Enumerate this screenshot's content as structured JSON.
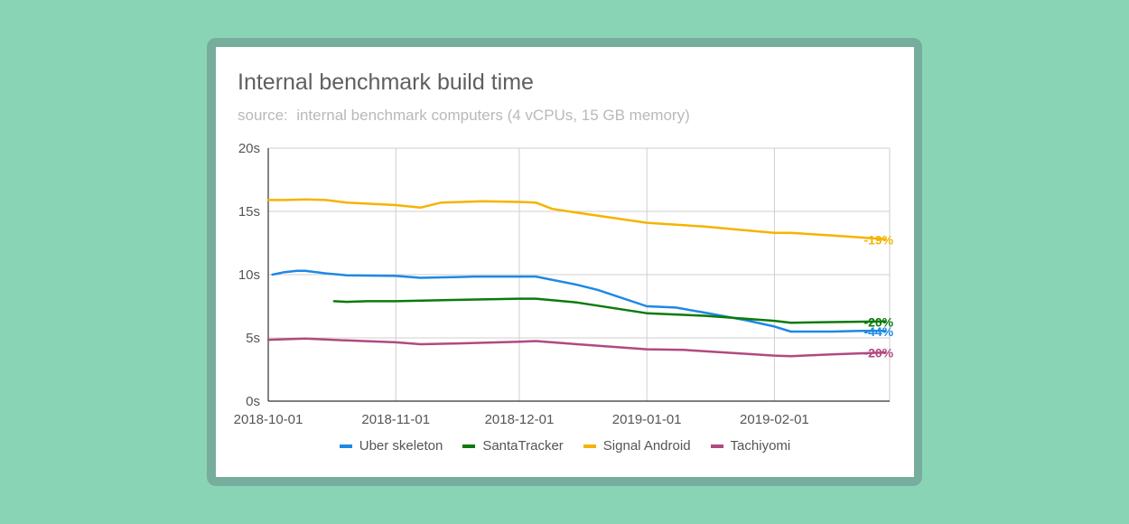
{
  "chart_data": {
    "type": "line",
    "title": "Internal benchmark build time",
    "subtitle": "source:  internal benchmark computers (4 vCPUs, 15 GB memory)",
    "xlabel": "",
    "ylabel": "",
    "ylim": [
      0,
      20
    ],
    "y_ticks": [
      0,
      5,
      10,
      15,
      20
    ],
    "y_tick_labels": [
      "0s",
      "5s",
      "10s",
      "15s",
      "20s"
    ],
    "x_range": [
      "2018-10-01",
      "2019-03-01"
    ],
    "x_ticks": [
      "2018-10-01",
      "2018-11-01",
      "2018-12-01",
      "2019-01-01",
      "2019-02-01"
    ],
    "grid": true,
    "legend_position": "bottom",
    "series": [
      {
        "name": "Uber skeleton",
        "color": "#1e88e5",
        "end_label": "-44%",
        "points": [
          [
            "2018-10-02",
            10.0
          ],
          [
            "2018-10-05",
            10.2
          ],
          [
            "2018-10-08",
            10.3
          ],
          [
            "2018-10-10",
            10.3
          ],
          [
            "2018-10-15",
            10.1
          ],
          [
            "2018-10-20",
            9.95
          ],
          [
            "2018-11-01",
            9.9
          ],
          [
            "2018-11-07",
            9.75
          ],
          [
            "2018-11-15",
            9.8
          ],
          [
            "2018-11-20",
            9.85
          ],
          [
            "2018-12-01",
            9.85
          ],
          [
            "2018-12-05",
            9.85
          ],
          [
            "2018-12-15",
            9.2
          ],
          [
            "2018-12-20",
            8.8
          ],
          [
            "2019-01-01",
            7.5
          ],
          [
            "2019-01-08",
            7.4
          ],
          [
            "2019-01-15",
            7.0
          ],
          [
            "2019-01-25",
            6.4
          ],
          [
            "2019-02-01",
            5.9
          ],
          [
            "2019-02-05",
            5.5
          ],
          [
            "2019-02-15",
            5.5
          ],
          [
            "2019-02-22",
            5.55
          ],
          [
            "2019-02-28",
            5.55
          ]
        ]
      },
      {
        "name": "SantaTracker",
        "color": "#0c7a0c",
        "end_label": "-20%",
        "points": [
          [
            "2018-10-17",
            7.9
          ],
          [
            "2018-10-20",
            7.85
          ],
          [
            "2018-10-25",
            7.9
          ],
          [
            "2018-11-01",
            7.9
          ],
          [
            "2018-11-15",
            8.0
          ],
          [
            "2018-12-01",
            8.1
          ],
          [
            "2018-12-05",
            8.1
          ],
          [
            "2018-12-15",
            7.8
          ],
          [
            "2019-01-01",
            6.95
          ],
          [
            "2019-01-15",
            6.75
          ],
          [
            "2019-02-01",
            6.35
          ],
          [
            "2019-02-05",
            6.2
          ],
          [
            "2019-02-15",
            6.25
          ],
          [
            "2019-02-28",
            6.3
          ]
        ]
      },
      {
        "name": "Signal Android",
        "color": "#f4b400",
        "end_label": "-19%",
        "points": [
          [
            "2018-10-01",
            15.9
          ],
          [
            "2018-10-05",
            15.9
          ],
          [
            "2018-10-10",
            15.95
          ],
          [
            "2018-10-15",
            15.9
          ],
          [
            "2018-10-20",
            15.7
          ],
          [
            "2018-11-01",
            15.5
          ],
          [
            "2018-11-07",
            15.3
          ],
          [
            "2018-11-12",
            15.7
          ],
          [
            "2018-11-22",
            15.8
          ],
          [
            "2018-12-01",
            15.75
          ],
          [
            "2018-12-05",
            15.7
          ],
          [
            "2018-12-09",
            15.2
          ],
          [
            "2018-12-15",
            14.9
          ],
          [
            "2019-01-01",
            14.1
          ],
          [
            "2019-01-15",
            13.8
          ],
          [
            "2019-02-01",
            13.3
          ],
          [
            "2019-02-05",
            13.3
          ],
          [
            "2019-02-15",
            13.1
          ],
          [
            "2019-02-28",
            12.8
          ]
        ]
      },
      {
        "name": "Tachiyomi",
        "color": "#b04a7f",
        "end_label": "-20%",
        "points": [
          [
            "2018-10-01",
            4.85
          ],
          [
            "2018-10-10",
            4.95
          ],
          [
            "2018-10-20",
            4.8
          ],
          [
            "2018-11-01",
            4.65
          ],
          [
            "2018-11-07",
            4.5
          ],
          [
            "2018-11-15",
            4.55
          ],
          [
            "2018-12-01",
            4.7
          ],
          [
            "2018-12-05",
            4.75
          ],
          [
            "2018-12-15",
            4.5
          ],
          [
            "2019-01-01",
            4.1
          ],
          [
            "2019-01-10",
            4.05
          ],
          [
            "2019-01-15",
            3.95
          ],
          [
            "2019-02-01",
            3.6
          ],
          [
            "2019-02-05",
            3.55
          ],
          [
            "2019-02-15",
            3.7
          ],
          [
            "2019-02-28",
            3.85
          ]
        ]
      }
    ]
  }
}
